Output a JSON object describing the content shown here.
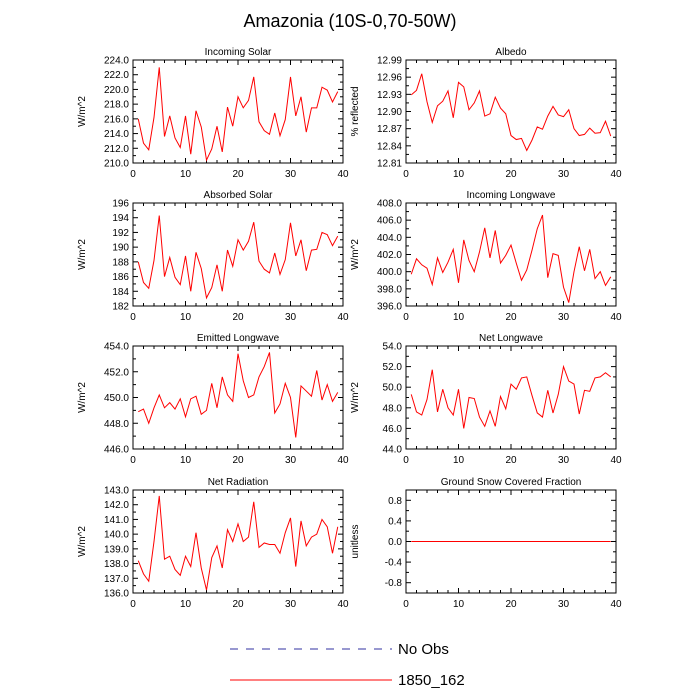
{
  "figure_title": "Amazonia (10S-0,70-50W)",
  "legend": [
    {
      "label": "No Obs",
      "style": "dashed",
      "color": "#3030a0"
    },
    {
      "label": "1850_162",
      "style": "solid",
      "color": "#ff0000"
    }
  ],
  "chart_data": [
    {
      "type": "line",
      "title": "Incoming Solar",
      "ylabel": "W/m^2",
      "xlim": [
        0,
        40
      ],
      "ylim": [
        210,
        224
      ],
      "yticks": [
        "224.0",
        "222.0",
        "220.0",
        "218.0",
        "216.0",
        "214.0",
        "212.0",
        "210.0"
      ],
      "xticks": [
        "0",
        "10",
        "20",
        "30",
        "40"
      ],
      "series": [
        {
          "name": "1850_162",
          "color": "#ff0000",
          "x_start": 1,
          "values": [
            216.0,
            212.7,
            211.8,
            216.2,
            223.0,
            213.6,
            216.4,
            213.4,
            212.1,
            216.4,
            211.2,
            217.1,
            214.9,
            210.4,
            211.9,
            215.0,
            211.5,
            217.6,
            215.0,
            219.0,
            217.5,
            218.5,
            221.7,
            215.6,
            214.4,
            213.9,
            216.8,
            213.7,
            215.9,
            221.7,
            216.4,
            219.0,
            214.2,
            217.5,
            217.5,
            220.3,
            219.9,
            218.3,
            219.7
          ]
        }
      ]
    },
    {
      "type": "line",
      "title": "Albedo",
      "ylabel": "% reflected",
      "xlim": [
        0,
        40
      ],
      "ylim": [
        12.81,
        12.99
      ],
      "yticks": [
        "12.99",
        "12.96",
        "12.93",
        "12.90",
        "12.87",
        "12.84",
        "12.81"
      ],
      "xticks": [
        "0",
        "10",
        "20",
        "30",
        "40"
      ],
      "series": [
        {
          "name": "1850_162",
          "color": "#ff0000",
          "x_start": 1,
          "values": [
            12.929,
            12.937,
            12.966,
            12.917,
            12.881,
            12.91,
            12.918,
            12.936,
            12.889,
            12.951,
            12.943,
            12.903,
            12.915,
            12.936,
            12.892,
            12.896,
            12.925,
            12.906,
            12.896,
            12.858,
            12.851,
            12.853,
            12.832,
            12.85,
            12.873,
            12.869,
            12.892,
            12.909,
            12.894,
            12.891,
            12.903,
            12.87,
            12.858,
            12.86,
            12.871,
            12.862,
            12.863,
            12.883,
            12.857
          ]
        }
      ]
    },
    {
      "type": "line",
      "title": "Absorbed Solar",
      "ylabel": "W/m^2",
      "xlim": [
        0,
        40
      ],
      "ylim": [
        182,
        196
      ],
      "yticks": [
        "196",
        "194",
        "192",
        "190",
        "188",
        "186",
        "184",
        "182"
      ],
      "xticks": [
        "0",
        "10",
        "20",
        "30",
        "40"
      ],
      "series": [
        {
          "name": "1850_162",
          "color": "#ff0000",
          "x_start": 1,
          "values": [
            188.0,
            185.2,
            184.4,
            188.2,
            194.3,
            186.0,
            188.6,
            185.9,
            184.9,
            188.8,
            184.0,
            189.3,
            187.1,
            183.1,
            184.5,
            187.6,
            184.0,
            189.6,
            187.4,
            191.0,
            189.6,
            190.8,
            193.4,
            188.1,
            187.0,
            186.5,
            189.2,
            186.3,
            188.3,
            193.3,
            188.8,
            191.0,
            186.8,
            189.6,
            189.7,
            192.0,
            191.7,
            190.2,
            191.5
          ]
        }
      ]
    },
    {
      "type": "line",
      "title": "Incoming Longwave",
      "ylabel": "W/m^2",
      "xlim": [
        0,
        40
      ],
      "ylim": [
        396,
        408
      ],
      "yticks": [
        "408.0",
        "406.0",
        "404.0",
        "402.0",
        "400.0",
        "398.0",
        "396.0"
      ],
      "xticks": [
        "0",
        "10",
        "20",
        "30",
        "40"
      ],
      "series": [
        {
          "name": "1850_162",
          "color": "#ff0000",
          "x_start": 1,
          "values": [
            399.7,
            401.5,
            400.8,
            400.4,
            398.5,
            401.6,
            399.9,
            401.1,
            402.6,
            398.7,
            403.7,
            401.3,
            400.0,
            402.3,
            405.1,
            401.6,
            404.8,
            401.0,
            401.9,
            403.1,
            401.0,
            399.0,
            400.2,
            402.5,
            405.0,
            406.6,
            399.3,
            402.1,
            401.9,
            398.2,
            396.4,
            400.0,
            402.9,
            400.1,
            402.6,
            399.2,
            400.0,
            398.4,
            399.4
          ]
        }
      ]
    },
    {
      "type": "line",
      "title": "Emitted Longwave",
      "ylabel": "W/m^2",
      "xlim": [
        0,
        40
      ],
      "ylim": [
        446,
        454
      ],
      "yticks": [
        "454.0",
        "452.0",
        "450.0",
        "448.0",
        "446.0"
      ],
      "xticks": [
        "0",
        "10",
        "20",
        "30",
        "40"
      ],
      "series": [
        {
          "name": "1850_162",
          "color": "#ff0000",
          "x_start": 1,
          "values": [
            448.9,
            449.1,
            448.0,
            449.2,
            450.2,
            449.2,
            449.6,
            449.1,
            449.9,
            448.5,
            449.9,
            450.1,
            448.7,
            449.0,
            451.1,
            449.2,
            451.6,
            450.2,
            449.7,
            453.4,
            451.3,
            450.0,
            450.2,
            451.6,
            452.4,
            453.5,
            448.8,
            449.5,
            451.1,
            450.0,
            446.9,
            450.9,
            450.5,
            450.1,
            452.1,
            449.8,
            451.0,
            449.7,
            450.4
          ]
        }
      ]
    },
    {
      "type": "line",
      "title": "Net Longwave",
      "ylabel": "W/m^2",
      "xlim": [
        0,
        40
      ],
      "ylim": [
        44,
        54
      ],
      "yticks": [
        "54.0",
        "52.0",
        "50.0",
        "48.0",
        "46.0",
        "44.0"
      ],
      "xticks": [
        "0",
        "10",
        "20",
        "30",
        "40"
      ],
      "series": [
        {
          "name": "1850_162",
          "color": "#ff0000",
          "x_start": 1,
          "values": [
            49.3,
            47.6,
            47.3,
            48.8,
            51.7,
            47.6,
            49.8,
            48.0,
            47.3,
            49.8,
            46.0,
            49.0,
            48.9,
            47.1,
            46.2,
            47.7,
            46.2,
            49.1,
            47.9,
            50.3,
            49.8,
            50.9,
            51.0,
            49.2,
            47.5,
            47.1,
            49.7,
            47.5,
            49.3,
            52.0,
            50.6,
            50.3,
            47.4,
            49.7,
            49.6,
            50.9,
            51.0,
            51.4,
            51.0
          ]
        }
      ]
    },
    {
      "type": "line",
      "title": "Net Radiation",
      "ylabel": "W/m^2",
      "xlim": [
        0,
        40
      ],
      "ylim": [
        136,
        143
      ],
      "yticks": [
        "143.0",
        "142.0",
        "141.0",
        "140.0",
        "139.0",
        "138.0",
        "137.0",
        "136.0"
      ],
      "xticks": [
        "0",
        "10",
        "20",
        "30",
        "40"
      ],
      "series": [
        {
          "name": "1850_162",
          "color": "#ff0000",
          "x_start": 1,
          "values": [
            138.2,
            137.3,
            136.8,
            139.5,
            142.6,
            138.3,
            138.5,
            137.6,
            137.2,
            138.5,
            137.8,
            140.1,
            137.7,
            136.2,
            138.4,
            139.2,
            137.7,
            140.3,
            139.5,
            140.7,
            139.5,
            139.8,
            142.2,
            139.1,
            139.4,
            139.3,
            139.3,
            138.7,
            140.1,
            141.1,
            137.8,
            140.9,
            139.2,
            139.8,
            140.0,
            141.0,
            140.5,
            138.7,
            140.5
          ]
        }
      ]
    },
    {
      "type": "line",
      "title": "Ground Snow Covered Fraction",
      "ylabel": "unitless",
      "xlim": [
        0,
        40
      ],
      "ylim": [
        -1.0,
        1.0
      ],
      "yticks": [
        "0.8",
        "0.4",
        "0.0",
        "-0.4",
        "-0.8"
      ],
      "xticks": [
        "0",
        "10",
        "20",
        "30",
        "40"
      ],
      "series": [
        {
          "name": "1850_162",
          "color": "#ff0000",
          "x_start": 1,
          "values": [
            0,
            0,
            0,
            0,
            0,
            0,
            0,
            0,
            0,
            0,
            0,
            0,
            0,
            0,
            0,
            0,
            0,
            0,
            0,
            0,
            0,
            0,
            0,
            0,
            0,
            0,
            0,
            0,
            0,
            0,
            0,
            0,
            0,
            0,
            0,
            0,
            0,
            0,
            0
          ]
        }
      ]
    }
  ]
}
